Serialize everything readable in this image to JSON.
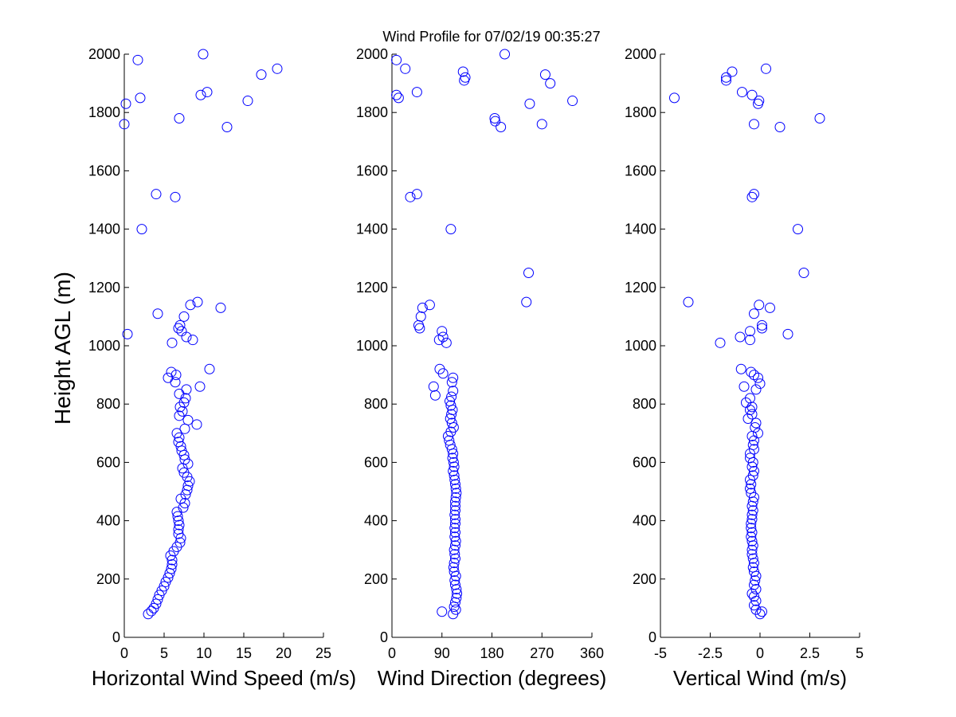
{
  "figure": {
    "title": "Wind Profile for  07/02/19 00:35:27",
    "ylabel": "Height AGL (m)",
    "marker_color": "#0000ff"
  },
  "chart_data": [
    {
      "type": "scatter",
      "xlabel": "Horizontal Wind Speed (m/s)",
      "ylabel": "Height AGL (m)",
      "xlim": [
        0,
        25
      ],
      "ylim": [
        0,
        2000
      ],
      "xticks": [
        0,
        5,
        10,
        15,
        20,
        25
      ],
      "xtick_labels": [
        "0",
        "5",
        "10",
        "15",
        "20",
        "25"
      ],
      "yticks": [
        0,
        200,
        400,
        600,
        800,
        1000,
        1200,
        1400,
        1600,
        1800,
        2000
      ],
      "ytick_labels": [
        "0",
        "200",
        "400",
        "600",
        "800",
        "1000",
        "1200",
        "1400",
        "1600",
        "1800",
        "2000"
      ],
      "grid": false,
      "points": [
        [
          3.0,
          80
        ],
        [
          3.4,
          90
        ],
        [
          3.7,
          100
        ],
        [
          4.0,
          115
        ],
        [
          4.2,
          130
        ],
        [
          4.4,
          145
        ],
        [
          4.7,
          160
        ],
        [
          5.0,
          175
        ],
        [
          5.2,
          190
        ],
        [
          5.5,
          205
        ],
        [
          5.7,
          220
        ],
        [
          5.9,
          235
        ],
        [
          6.0,
          250
        ],
        [
          6.0,
          265
        ],
        [
          5.8,
          280
        ],
        [
          6.2,
          295
        ],
        [
          6.6,
          310
        ],
        [
          7.0,
          325
        ],
        [
          7.1,
          340
        ],
        [
          6.8,
          355
        ],
        [
          6.8,
          370
        ],
        [
          6.9,
          385
        ],
        [
          6.8,
          400
        ],
        [
          6.7,
          415
        ],
        [
          6.6,
          430
        ],
        [
          7.4,
          445
        ],
        [
          7.6,
          460
        ],
        [
          7.1,
          475
        ],
        [
          7.7,
          490
        ],
        [
          7.9,
          505
        ],
        [
          8.0,
          520
        ],
        [
          8.2,
          535
        ],
        [
          7.9,
          550
        ],
        [
          7.5,
          565
        ],
        [
          7.3,
          580
        ],
        [
          8.0,
          595
        ],
        [
          7.6,
          610
        ],
        [
          7.5,
          625
        ],
        [
          7.2,
          640
        ],
        [
          7.1,
          655
        ],
        [
          6.8,
          670
        ],
        [
          6.9,
          685
        ],
        [
          6.6,
          700
        ],
        [
          7.6,
          715
        ],
        [
          9.1,
          730
        ],
        [
          8.0,
          745
        ],
        [
          6.9,
          760
        ],
        [
          7.3,
          775
        ],
        [
          7.0,
          790
        ],
        [
          7.5,
          805
        ],
        [
          7.7,
          820
        ],
        [
          6.9,
          835
        ],
        [
          7.8,
          850
        ],
        [
          9.5,
          860
        ],
        [
          6.4,
          875
        ],
        [
          5.5,
          890
        ],
        [
          6.5,
          900
        ],
        [
          5.9,
          910
        ],
        [
          10.7,
          920
        ],
        [
          0.4,
          1040
        ],
        [
          6.0,
          1010
        ],
        [
          8.6,
          1020
        ],
        [
          7.8,
          1030
        ],
        [
          7.2,
          1050
        ],
        [
          6.8,
          1060
        ],
        [
          7.0,
          1070
        ],
        [
          7.5,
          1100
        ],
        [
          4.2,
          1110
        ],
        [
          12.1,
          1130
        ],
        [
          8.3,
          1140
        ],
        [
          9.2,
          1150
        ],
        [
          2.2,
          1400
        ],
        [
          6.4,
          1510
        ],
        [
          4.0,
          1520
        ],
        [
          12.9,
          1750
        ],
        [
          0.0,
          1760
        ],
        [
          6.9,
          1780
        ],
        [
          0.2,
          1830
        ],
        [
          15.5,
          1840
        ],
        [
          2.0,
          1850
        ],
        [
          9.6,
          1860
        ],
        [
          10.4,
          1870
        ],
        [
          17.2,
          1930
        ],
        [
          19.2,
          1950
        ],
        [
          1.7,
          1980
        ],
        [
          9.9,
          2000
        ]
      ]
    },
    {
      "type": "scatter",
      "xlabel": "Wind Direction (degrees)",
      "ylabel": "",
      "xlim": [
        0,
        360
      ],
      "ylim": [
        0,
        2000
      ],
      "xticks": [
        0,
        90,
        180,
        270,
        360
      ],
      "xtick_labels": [
        "0",
        "90",
        "180",
        "270",
        "360"
      ],
      "yticks": [
        0,
        200,
        400,
        600,
        800,
        1000,
        1200,
        1400,
        1600,
        1800,
        2000
      ],
      "ytick_labels": [
        "0",
        "200",
        "400",
        "600",
        "800",
        "1000",
        "1200",
        "1400",
        "1600",
        "1800",
        "2000"
      ],
      "grid": false,
      "points": [
        [
          110,
          80
        ],
        [
          90,
          88
        ],
        [
          115,
          95
        ],
        [
          112,
          105
        ],
        [
          114,
          120
        ],
        [
          116,
          135
        ],
        [
          117,
          150
        ],
        [
          116,
          165
        ],
        [
          114,
          180
        ],
        [
          113,
          195
        ],
        [
          115,
          210
        ],
        [
          112,
          225
        ],
        [
          111,
          240
        ],
        [
          112,
          255
        ],
        [
          114,
          270
        ],
        [
          113,
          285
        ],
        [
          112,
          300
        ],
        [
          114,
          315
        ],
        [
          115,
          330
        ],
        [
          113,
          345
        ],
        [
          114,
          360
        ],
        [
          113,
          375
        ],
        [
          114,
          390
        ],
        [
          114,
          405
        ],
        [
          113,
          420
        ],
        [
          114,
          435
        ],
        [
          114,
          450
        ],
        [
          114,
          465
        ],
        [
          115,
          480
        ],
        [
          116,
          495
        ],
        [
          115,
          510
        ],
        [
          114,
          525
        ],
        [
          113,
          540
        ],
        [
          112,
          555
        ],
        [
          110,
          570
        ],
        [
          112,
          585
        ],
        [
          111,
          600
        ],
        [
          109,
          615
        ],
        [
          110,
          630
        ],
        [
          108,
          645
        ],
        [
          105,
          660
        ],
        [
          103,
          675
        ],
        [
          101,
          690
        ],
        [
          106,
          705
        ],
        [
          111,
          720
        ],
        [
          108,
          735
        ],
        [
          105,
          750
        ],
        [
          107,
          765
        ],
        [
          109,
          780
        ],
        [
          106,
          795
        ],
        [
          104,
          810
        ],
        [
          107,
          825
        ],
        [
          78,
          830
        ],
        [
          110,
          845
        ],
        [
          75,
          860
        ],
        [
          108,
          875
        ],
        [
          110,
          890
        ],
        [
          92,
          905
        ],
        [
          86,
          920
        ],
        [
          85,
          1020
        ],
        [
          98,
          1010
        ],
        [
          92,
          1030
        ],
        [
          90,
          1050
        ],
        [
          50,
          1060
        ],
        [
          48,
          1070
        ],
        [
          52,
          1100
        ],
        [
          55,
          1130
        ],
        [
          68,
          1140
        ],
        [
          242,
          1150
        ],
        [
          246,
          1250
        ],
        [
          106,
          1400
        ],
        [
          33,
          1510
        ],
        [
          45,
          1520
        ],
        [
          196,
          1750
        ],
        [
          270,
          1760
        ],
        [
          186,
          1770
        ],
        [
          185,
          1780
        ],
        [
          248,
          1830
        ],
        [
          325,
          1840
        ],
        [
          12,
          1850
        ],
        [
          8,
          1860
        ],
        [
          45,
          1870
        ],
        [
          285,
          1900
        ],
        [
          130,
          1910
        ],
        [
          132,
          1920
        ],
        [
          276,
          1930
        ],
        [
          128,
          1940
        ],
        [
          24,
          1950
        ],
        [
          8,
          1980
        ],
        [
          203,
          2000
        ]
      ]
    },
    {
      "type": "scatter",
      "xlabel": "Vertical Wind (m/s)",
      "ylabel": "",
      "xlim": [
        -5,
        5
      ],
      "ylim": [
        0,
        2000
      ],
      "xticks": [
        -5,
        -2.5,
        0,
        2.5,
        5
      ],
      "xtick_labels": [
        "-5",
        "-2.5",
        "0",
        "2.5",
        "5"
      ],
      "yticks": [
        0,
        200,
        400,
        600,
        800,
        1000,
        1200,
        1400,
        1600,
        1800,
        2000
      ],
      "ytick_labels": [
        "0",
        "200",
        "400",
        "600",
        "800",
        "1000",
        "1200",
        "1400",
        "1600",
        "1800",
        "2000"
      ],
      "grid": false,
      "points": [
        [
          0.0,
          80
        ],
        [
          0.1,
          88
        ],
        [
          -0.2,
          95
        ],
        [
          -0.3,
          110
        ],
        [
          -0.2,
          125
        ],
        [
          -0.3,
          140
        ],
        [
          -0.4,
          150
        ],
        [
          -0.2,
          165
        ],
        [
          -0.3,
          180
        ],
        [
          -0.25,
          195
        ],
        [
          -0.2,
          210
        ],
        [
          -0.3,
          225
        ],
        [
          -0.35,
          240
        ],
        [
          -0.3,
          255
        ],
        [
          -0.35,
          270
        ],
        [
          -0.4,
          285
        ],
        [
          -0.4,
          300
        ],
        [
          -0.35,
          315
        ],
        [
          -0.4,
          330
        ],
        [
          -0.45,
          345
        ],
        [
          -0.4,
          360
        ],
        [
          -0.45,
          375
        ],
        [
          -0.45,
          390
        ],
        [
          -0.4,
          405
        ],
        [
          -0.4,
          420
        ],
        [
          -0.35,
          435
        ],
        [
          -0.4,
          450
        ],
        [
          -0.35,
          465
        ],
        [
          -0.3,
          480
        ],
        [
          -0.45,
          495
        ],
        [
          -0.5,
          510
        ],
        [
          -0.45,
          525
        ],
        [
          -0.5,
          540
        ],
        [
          -0.35,
          555
        ],
        [
          -0.3,
          570
        ],
        [
          -0.4,
          585
        ],
        [
          -0.35,
          600
        ],
        [
          -0.5,
          615
        ],
        [
          -0.5,
          630
        ],
        [
          -0.3,
          645
        ],
        [
          -0.35,
          660
        ],
        [
          -0.3,
          675
        ],
        [
          -0.4,
          690
        ],
        [
          -0.1,
          700
        ],
        [
          -0.25,
          720
        ],
        [
          -0.2,
          735
        ],
        [
          -0.6,
          750
        ],
        [
          -0.4,
          765
        ],
        [
          -0.5,
          780
        ],
        [
          -0.4,
          790
        ],
        [
          -0.7,
          805
        ],
        [
          -0.5,
          820
        ],
        [
          -0.2,
          850
        ],
        [
          -0.8,
          860
        ],
        [
          0.0,
          870
        ],
        [
          -0.1,
          890
        ],
        [
          -0.3,
          900
        ],
        [
          -0.45,
          910
        ],
        [
          -0.95,
          920
        ],
        [
          -1.0,
          1030
        ],
        [
          -2.0,
          1010
        ],
        [
          -0.5,
          1020
        ],
        [
          -0.5,
          1050
        ],
        [
          0.1,
          1060
        ],
        [
          0.1,
          1070
        ],
        [
          1.4,
          1040
        ],
        [
          -0.3,
          1110
        ],
        [
          -0.05,
          1140
        ],
        [
          0.5,
          1130
        ],
        [
          -3.6,
          1150
        ],
        [
          2.2,
          1250
        ],
        [
          1.9,
          1400
        ],
        [
          -0.4,
          1510
        ],
        [
          -0.3,
          1520
        ],
        [
          1.0,
          1750
        ],
        [
          -0.3,
          1760
        ],
        [
          3.0,
          1780
        ],
        [
          -0.1,
          1830
        ],
        [
          -0.05,
          1840
        ],
        [
          -4.3,
          1850
        ],
        [
          -0.4,
          1860
        ],
        [
          -0.9,
          1870
        ],
        [
          -1.7,
          1910
        ],
        [
          -1.7,
          1920
        ],
        [
          -1.4,
          1940
        ],
        [
          0.3,
          1950
        ]
      ]
    }
  ]
}
